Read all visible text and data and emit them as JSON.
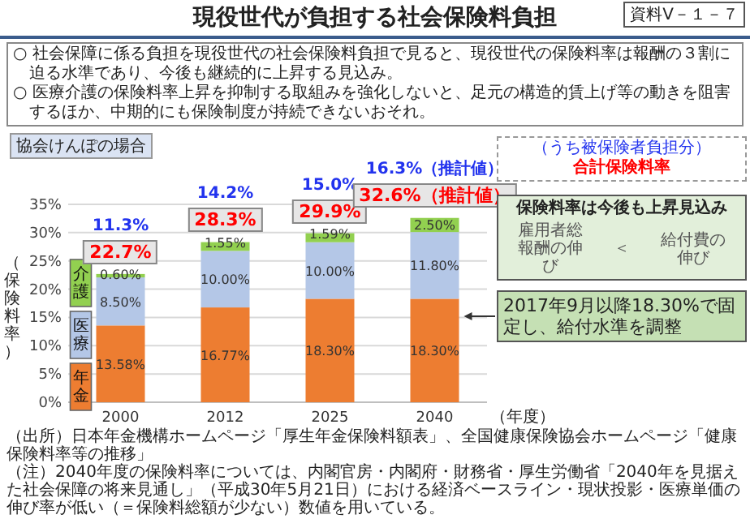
{
  "chart_data": {
    "type": "bar",
    "stacked": true,
    "title": "現役世代が負担する社会保険料負担",
    "xlabel": "（年度）",
    "ylabel": "（保険料率）",
    "categories": [
      "2000",
      "2012",
      "2025",
      "2040"
    ],
    "series": [
      {
        "name": "年金",
        "color": "#ed7d31",
        "values": [
          13.58,
          16.77,
          18.3,
          18.3
        ],
        "value_labels": [
          "13.58%",
          "16.77%",
          "18.30%",
          "18.30%"
        ]
      },
      {
        "name": "医療",
        "color": "#b4c7e7",
        "values": [
          8.5,
          10.0,
          10.0,
          11.8
        ],
        "value_labels": [
          "8.50%",
          "10.00%",
          "10.00%",
          "11.80%"
        ]
      },
      {
        "name": "介護",
        "color": "#92d050",
        "values": [
          0.6,
          1.55,
          1.59,
          2.5
        ],
        "value_labels": [
          "0.60%",
          "1.55%",
          "1.59%",
          "2.50%"
        ]
      }
    ],
    "totals": [
      "22.7%",
      "28.3%",
      "29.9%",
      "32.6%（推計値）"
    ],
    "ylim": [
      0,
      35
    ],
    "yticks": [
      {
        "value": 0,
        "label": "0%"
      },
      {
        "value": 5,
        "label": "5%"
      },
      {
        "value": 10,
        "label": "10%"
      },
      {
        "value": 15,
        "label": "15%"
      },
      {
        "value": 20,
        "label": "20%"
      },
      {
        "value": 25,
        "label": "25%"
      },
      {
        "value": 30,
        "label": "30%"
      },
      {
        "value": 35,
        "label": "35%"
      }
    ],
    "grid": "y",
    "legend": "left",
    "annotations": [
      "資料Ⅴ－１－７",
      "○ 社会保障に係る負担を現役世代の社会保険料負担で見ると、現役世代の保険料率は報酬の３割に迫る水準であり、今後も継続的に上昇する見込み。",
      "○ 医療介護の保険料率上昇を抑制する取組みを強化しないと、足元の構造的賃上げ等の動きを阻害するほか、中期的にも保険制度が持続できないおそれ。",
      "協会けんぽの場合",
      "11.3%",
      "14.2%",
      "15.0%",
      "16.3%（推計値）",
      "（うち被保険者負担分）",
      "合計保険料率",
      "保険料率は今後も上昇見込み",
      "雇用者総報酬の伸び",
      "＜",
      "給付費の伸び",
      "2017年9月以降18.30%で固定し、給付水準を調整",
      "（出所）日本年金機構ホームページ「厚生年金保険料額表」、全国健康保険協会ホームページ「健康保険料率等の推移」",
      "（注）2040年度の保険料率については、内閣官房・内閣府・財務省・厚生労働省「2040年を見据えた社会保障の将来見通し」（平成30年5月21日）における経済ベースライン・現状投影・医療単価の伸び率が低い（＝保険料総額が少ない）数値を用いている。"
    ]
  }
}
